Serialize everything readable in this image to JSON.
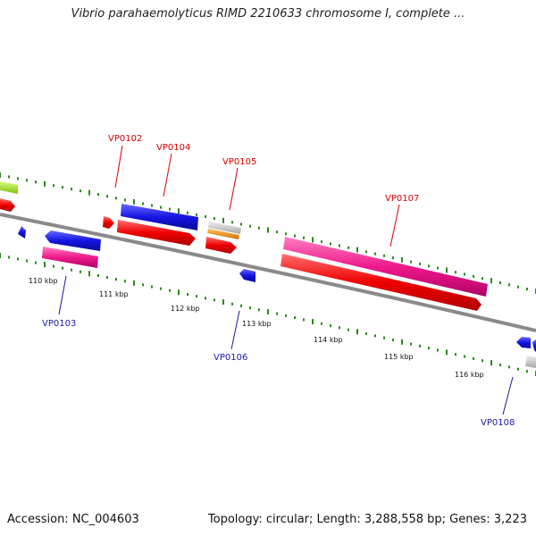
{
  "header": {
    "title": "Vibrio parahaemolyticus RIMD 2210633 chromosome I, complete ..."
  },
  "footer": {
    "accession": "Accession: NC_004603",
    "summary": "Topology: circular; Length: 3,288,558 bp; Genes: 3,223"
  },
  "map": {
    "tick_labels": [
      "110 kbp",
      "111 kbp",
      "112 kbp",
      "113 kbp",
      "114 kbp",
      "115 kbp",
      "116 kbp"
    ],
    "gene_labels": {
      "top": [
        "VP0102",
        "VP0104",
        "VP0105",
        "VP0107"
      ],
      "bottom": [
        "VP0103",
        "VP0106",
        "VP0108"
      ]
    },
    "colors": {
      "backbone": "#8a8a8a",
      "red": "#ee0000",
      "blue": "#1414e0",
      "pink": "#ee1a8c",
      "gray": "#c8c8c8",
      "orange": "#f08c00",
      "lime": "#a6e22e",
      "tick_green": "#2a8a1a",
      "label_red": "#d40000",
      "label_blue": "#1a1aa8"
    }
  }
}
